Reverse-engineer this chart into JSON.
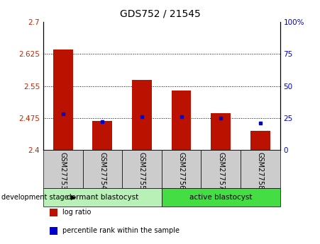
{
  "title": "GDS752 / 21545",
  "samples": [
    "GSM27753",
    "GSM27754",
    "GSM27755",
    "GSM27756",
    "GSM27757",
    "GSM27758"
  ],
  "log_ratios": [
    2.635,
    2.468,
    2.565,
    2.54,
    2.487,
    2.445
  ],
  "percentile_ranks": [
    28,
    22,
    26,
    26,
    25,
    21
  ],
  "ylim_left": [
    2.4,
    2.7
  ],
  "yticks_left": [
    2.4,
    2.475,
    2.55,
    2.625,
    2.7
  ],
  "ytick_labels_left": [
    "2.4",
    "2.475",
    "2.55",
    "2.625",
    "2.7"
  ],
  "ylim_right": [
    0,
    100
  ],
  "yticks_right": [
    0,
    25,
    50,
    75,
    100
  ],
  "ytick_labels_right": [
    "0",
    "25",
    "50",
    "75",
    "100%"
  ],
  "bar_color": "#bb1100",
  "dot_color": "#0000cc",
  "bar_width": 0.5,
  "base_value": 2.4,
  "groups": [
    {
      "label": "dormant blastocyst",
      "start": 0,
      "end": 3,
      "color": "#b8f0b8"
    },
    {
      "label": "active blastocyst",
      "start": 3,
      "end": 6,
      "color": "#44dd44"
    }
  ],
  "group_label_prefix": "development stage",
  "legend_entries": [
    {
      "label": "log ratio",
      "color": "#bb1100"
    },
    {
      "label": "percentile rank within the sample",
      "color": "#0000cc"
    }
  ],
  "grid_color": "black",
  "tick_label_color_left": "#cc2200",
  "tick_label_color_right": "#0000cc",
  "xticklabel_bg": "#cccccc"
}
